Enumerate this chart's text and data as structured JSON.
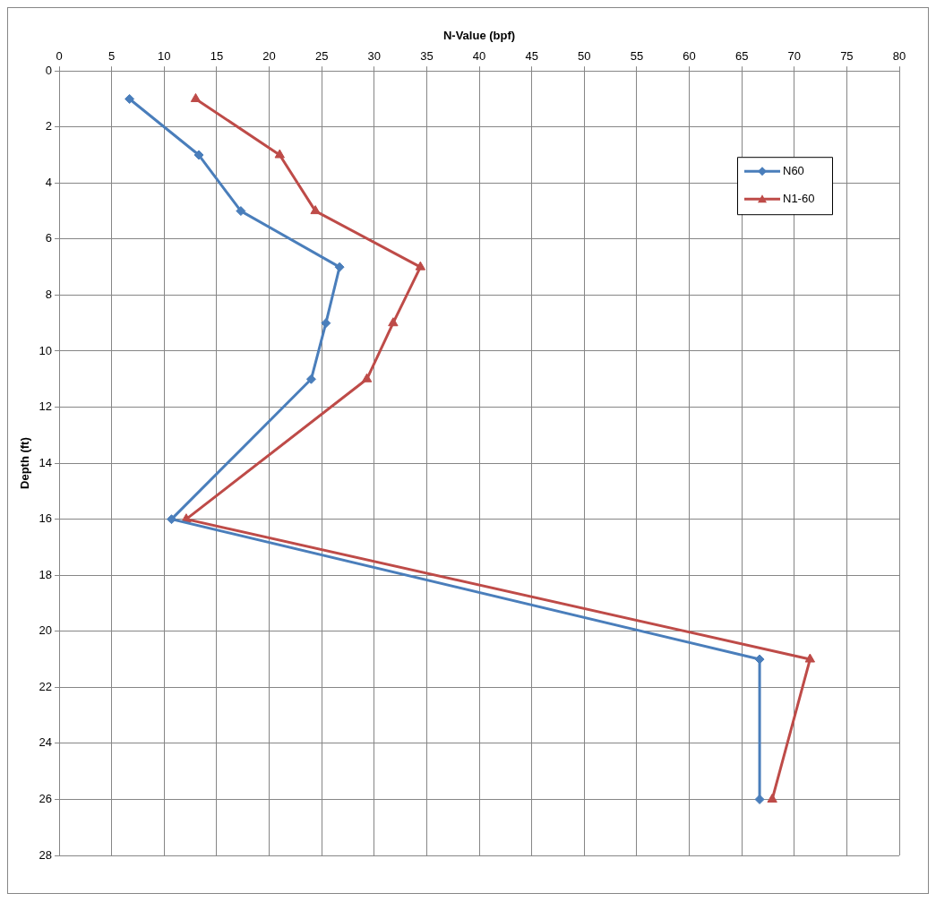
{
  "chart_data": {
    "type": "line",
    "xlabel": "N-Value (bpf)",
    "ylabel": "Depth (ft)",
    "xlim": [
      0,
      80
    ],
    "xticks": [
      0,
      5,
      10,
      15,
      20,
      25,
      30,
      35,
      40,
      45,
      50,
      55,
      60,
      65,
      70,
      75,
      80
    ],
    "ylim": [
      28,
      0
    ],
    "yticks": [
      0,
      2,
      4,
      6,
      8,
      10,
      12,
      14,
      16,
      18,
      20,
      22,
      24,
      26,
      28
    ],
    "grid": true,
    "legend": "top right",
    "line_style": "solid",
    "series": [
      {
        "name": "N60",
        "color": "#4a7ebb",
        "marker": "diamond",
        "x": [
          6.7,
          13.3,
          17.3,
          26.7,
          25.4,
          24.0,
          10.7,
          66.7,
          66.7
        ],
        "values": [
          1,
          3,
          5,
          7,
          9,
          11,
          16,
          21,
          26
        ]
      },
      {
        "name": "N1-60",
        "color": "#be4b48",
        "marker": "triangle",
        "x": [
          13.0,
          21.0,
          24.4,
          34.4,
          31.8,
          29.3,
          12.1,
          71.5,
          67.9
        ],
        "values": [
          1,
          3,
          5,
          7,
          9,
          11,
          16,
          21,
          26
        ]
      }
    ]
  }
}
